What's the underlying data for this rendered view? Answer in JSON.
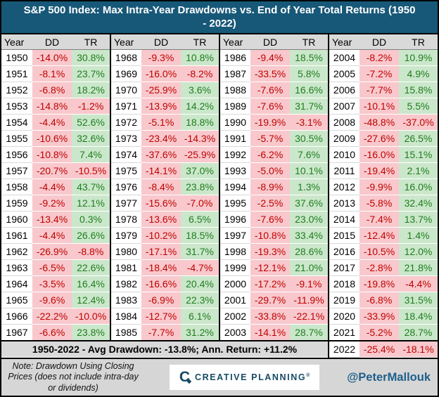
{
  "title": "S&P 500 Index: Max Intra-Year Drawdowns vs. End of Year Total Returns (1950 - 2022)",
  "chart_data": {
    "type": "table",
    "title": "S&P 500 Index: Max Intra-Year Drawdowns vs. End of Year Total Returns (1950 - 2022)",
    "columns": [
      "Year",
      "DD",
      "TR"
    ],
    "groups": [
      {
        "rows": [
          [
            "1950",
            "-14.0%",
            "30.8%"
          ],
          [
            "1951",
            "-8.1%",
            "23.7%"
          ],
          [
            "1952",
            "-6.8%",
            "18.2%"
          ],
          [
            "1953",
            "-14.8%",
            "-1.2%"
          ],
          [
            "1954",
            "-4.4%",
            "52.6%"
          ],
          [
            "1955",
            "-10.6%",
            "32.6%"
          ],
          [
            "1956",
            "-10.8%",
            "7.4%"
          ],
          [
            "1957",
            "-20.7%",
            "-10.5%"
          ],
          [
            "1958",
            "-4.4%",
            "43.7%"
          ],
          [
            "1959",
            "-9.2%",
            "12.1%"
          ],
          [
            "1960",
            "-13.4%",
            "0.3%"
          ],
          [
            "1961",
            "-4.4%",
            "26.6%"
          ],
          [
            "1962",
            "-26.9%",
            "-8.8%"
          ],
          [
            "1963",
            "-6.5%",
            "22.6%"
          ],
          [
            "1964",
            "-3.5%",
            "16.4%"
          ],
          [
            "1965",
            "-9.6%",
            "12.4%"
          ],
          [
            "1966",
            "-22.2%",
            "-10.0%"
          ],
          [
            "1967",
            "-6.6%",
            "23.8%"
          ]
        ]
      },
      {
        "rows": [
          [
            "1968",
            "-9.3%",
            "10.8%"
          ],
          [
            "1969",
            "-16.0%",
            "-8.2%"
          ],
          [
            "1970",
            "-25.9%",
            "3.6%"
          ],
          [
            "1971",
            "-13.9%",
            "14.2%"
          ],
          [
            "1972",
            "-5.1%",
            "18.8%"
          ],
          [
            "1973",
            "-23.4%",
            "-14.3%"
          ],
          [
            "1974",
            "-37.6%",
            "-25.9%"
          ],
          [
            "1975",
            "-14.1%",
            "37.0%"
          ],
          [
            "1976",
            "-8.4%",
            "23.8%"
          ],
          [
            "1977",
            "-15.6%",
            "-7.0%"
          ],
          [
            "1978",
            "-13.6%",
            "6.5%"
          ],
          [
            "1979",
            "-10.2%",
            "18.5%"
          ],
          [
            "1980",
            "-17.1%",
            "31.7%"
          ],
          [
            "1981",
            "-18.4%",
            "-4.7%"
          ],
          [
            "1982",
            "-16.6%",
            "20.4%"
          ],
          [
            "1983",
            "-6.9%",
            "22.3%"
          ],
          [
            "1984",
            "-12.7%",
            "6.1%"
          ],
          [
            "1985",
            "-7.7%",
            "31.2%"
          ]
        ]
      },
      {
        "rows": [
          [
            "1986",
            "-9.4%",
            "18.5%"
          ],
          [
            "1987",
            "-33.5%",
            "5.8%"
          ],
          [
            "1988",
            "-7.6%",
            "16.6%"
          ],
          [
            "1989",
            "-7.6%",
            "31.7%"
          ],
          [
            "1990",
            "-19.9%",
            "-3.1%"
          ],
          [
            "1991",
            "-5.7%",
            "30.5%"
          ],
          [
            "1992",
            "-6.2%",
            "7.6%"
          ],
          [
            "1993",
            "-5.0%",
            "10.1%"
          ],
          [
            "1994",
            "-8.9%",
            "1.3%"
          ],
          [
            "1995",
            "-2.5%",
            "37.6%"
          ],
          [
            "1996",
            "-7.6%",
            "23.0%"
          ],
          [
            "1997",
            "-10.8%",
            "33.4%"
          ],
          [
            "1998",
            "-19.3%",
            "28.6%"
          ],
          [
            "1999",
            "-12.1%",
            "21.0%"
          ],
          [
            "2000",
            "-17.2%",
            "-9.1%"
          ],
          [
            "2001",
            "-29.7%",
            "-11.9%"
          ],
          [
            "2002",
            "-33.8%",
            "-22.1%"
          ],
          [
            "2003",
            "-14.1%",
            "28.7%"
          ]
        ]
      },
      {
        "rows": [
          [
            "2004",
            "-8.2%",
            "10.9%"
          ],
          [
            "2005",
            "-7.2%",
            "4.9%"
          ],
          [
            "2006",
            "-7.7%",
            "15.8%"
          ],
          [
            "2007",
            "-10.1%",
            "5.5%"
          ],
          [
            "2008",
            "-48.8%",
            "-37.0%"
          ],
          [
            "2009",
            "-27.6%",
            "26.5%"
          ],
          [
            "2010",
            "-16.0%",
            "15.1%"
          ],
          [
            "2011",
            "-19.4%",
            "2.1%"
          ],
          [
            "2012",
            "-9.9%",
            "16.0%"
          ],
          [
            "2013",
            "-5.8%",
            "32.4%"
          ],
          [
            "2014",
            "-7.4%",
            "13.7%"
          ],
          [
            "2015",
            "-12.4%",
            "1.4%"
          ],
          [
            "2016",
            "-10.5%",
            "12.0%"
          ],
          [
            "2017",
            "-2.8%",
            "21.8%"
          ],
          [
            "2018",
            "-19.8%",
            "-4.4%"
          ],
          [
            "2019",
            "-6.8%",
            "31.5%"
          ],
          [
            "2020",
            "-33.9%",
            "18.4%"
          ],
          [
            "2021",
            "-5.2%",
            "28.7%"
          ]
        ]
      }
    ],
    "summary": "1950-2022 - Avg Drawdown: -13.8%; Ann. Return: +11.2%",
    "final_row": [
      "2022",
      "-25.4%",
      "-18.1%"
    ]
  },
  "footer": {
    "note": "Note: Drawdown Using Closing Prices (does not include intra-day or dividends)",
    "logo": {
      "mark": "C",
      "text": "CREATIVE PLANNING",
      "reg": "®"
    },
    "handle": "@PeterMallouk"
  },
  "colors": {
    "header_bg": "#175878",
    "negative_bg": "#f8c8cc",
    "negative_text": "#c00000",
    "positive_bg": "#cbe7cb",
    "positive_text": "#1e7d1e",
    "gray_band": "#d9d9d9",
    "brand_navy": "#164a66",
    "handle_blue": "#20608a"
  }
}
